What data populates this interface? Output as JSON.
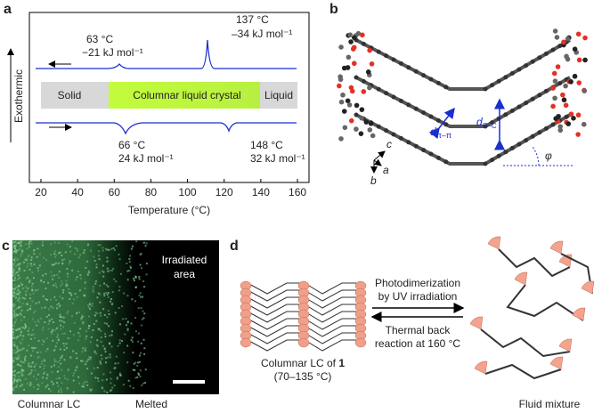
{
  "panel_a": {
    "label": "a",
    "y_label": "Exothermic",
    "x_label": "Temperature (°C)",
    "xlim": [
      13.7,
      166.3
    ],
    "xticks": [
      20,
      40,
      60,
      80,
      100,
      120,
      140,
      160
    ],
    "phases": [
      "Solid",
      "Columnar liquid crystal",
      "Liquid"
    ],
    "cooling": [
      {
        "temp": "63 °C",
        "enthalpy": "−21 kJ mol⁻¹"
      },
      {
        "temp": "137 °C",
        "enthalpy": "–34 kJ mol⁻¹"
      }
    ],
    "heating": [
      {
        "temp": "66 °C",
        "enthalpy": "24 kJ mol⁻¹"
      },
      {
        "temp": "148 °C",
        "enthalpy": "32 kJ mol⁻¹"
      }
    ]
  },
  "panel_b": {
    "label": "b",
    "d_pi": "d",
    "d_pi_sub": "π–π",
    "d_cc": "d",
    "d_cc_sub": "C–C",
    "angle": "φ",
    "axis_c": "c",
    "axis_a": "a",
    "axis_b": "b"
  },
  "panel_c": {
    "label": "c",
    "irradiated": [
      "Irradiated",
      "area"
    ],
    "left_label": "Columnar LC",
    "right_label": "Melted"
  },
  "panel_d": {
    "label": "d",
    "forward": [
      "Photodimerization",
      "by UV irradiation"
    ],
    "backward": [
      "Thermal back",
      "reaction at 160 °C"
    ],
    "lc_label": "Columnar LC of ",
    "lc_number": "1",
    "lc_range": "(70–135 °C)",
    "mixture_label": "Fluid mixture"
  }
}
